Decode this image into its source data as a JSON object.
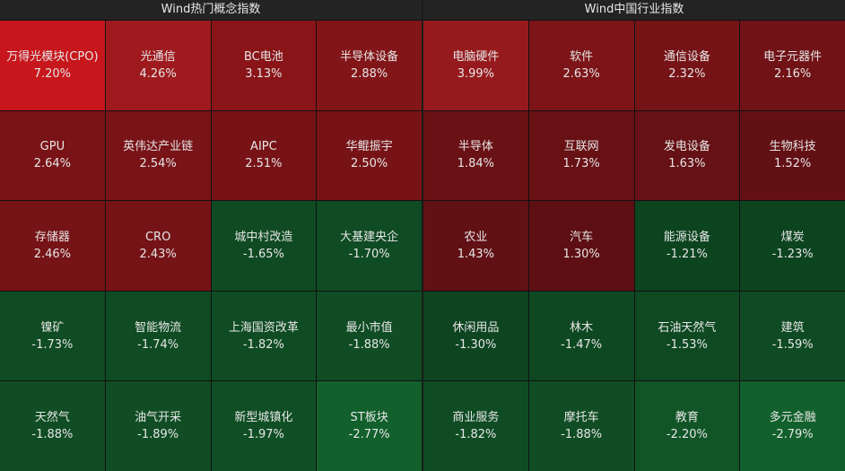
{
  "panels": [
    {
      "title": "Wind热门概念指数",
      "tiles": [
        {
          "name": "万得光模块(CPO)",
          "change": "7.20%",
          "color": "#c8161d"
        },
        {
          "name": "光通信",
          "change": "4.26%",
          "color": "#9e1a1e"
        },
        {
          "name": "BC电池",
          "change": "3.13%",
          "color": "#8a1519"
        },
        {
          "name": "半导体设备",
          "change": "2.88%",
          "color": "#821518"
        },
        {
          "name": "GPU",
          "change": "2.64%",
          "color": "#7a1317"
        },
        {
          "name": "英伟达产业链",
          "change": "2.54%",
          "color": "#781317"
        },
        {
          "name": "AIPC",
          "change": "2.51%",
          "color": "#771317"
        },
        {
          "name": "华鲲振宇",
          "change": "2.50%",
          "color": "#771317"
        },
        {
          "name": "存储器",
          "change": "2.46%",
          "color": "#761317"
        },
        {
          "name": "CRO",
          "change": "2.43%",
          "color": "#751317"
        },
        {
          "name": "城中村改造",
          "change": "-1.65%",
          "color": "#0f4a22"
        },
        {
          "name": "大基建央企",
          "change": "-1.70%",
          "color": "#0f4b23"
        },
        {
          "name": "镍矿",
          "change": "-1.73%",
          "color": "#0f4b23"
        },
        {
          "name": "智能物流",
          "change": "-1.74%",
          "color": "#0f4b23"
        },
        {
          "name": "上海国资改革",
          "change": "-1.82%",
          "color": "#0f4c24"
        },
        {
          "name": "最小市值",
          "change": "-1.88%",
          "color": "#104d24"
        },
        {
          "name": "天然气",
          "change": "-1.88%",
          "color": "#104d24"
        },
        {
          "name": "油气开采",
          "change": "-1.89%",
          "color": "#104d24"
        },
        {
          "name": "新型城镇化",
          "change": "-1.97%",
          "color": "#104e25"
        },
        {
          "name": "ST板块",
          "change": "-2.77%",
          "color": "#12602c"
        }
      ]
    },
    {
      "title": "Wind中国行业指数",
      "tiles": [
        {
          "name": "电脑硬件",
          "change": "3.99%",
          "color": "#961a1d"
        },
        {
          "name": "软件",
          "change": "2.63%",
          "color": "#7c1418"
        },
        {
          "name": "通信设备",
          "change": "2.32%",
          "color": "#751317"
        },
        {
          "name": "电子元器件",
          "change": "2.16%",
          "color": "#701216"
        },
        {
          "name": "半导体",
          "change": "1.84%",
          "color": "#6a1115"
        },
        {
          "name": "互联网",
          "change": "1.73%",
          "color": "#681115"
        },
        {
          "name": "发电设备",
          "change": "1.63%",
          "color": "#661115"
        },
        {
          "name": "生物科技",
          "change": "1.52%",
          "color": "#631014"
        },
        {
          "name": "农业",
          "change": "1.43%",
          "color": "#611014"
        },
        {
          "name": "汽车",
          "change": "1.30%",
          "color": "#5e0f13"
        },
        {
          "name": "能源设备",
          "change": "-1.21%",
          "color": "#0c4420"
        },
        {
          "name": "煤炭",
          "change": "-1.23%",
          "color": "#0c4420"
        },
        {
          "name": "休闲用品",
          "change": "-1.30%",
          "color": "#0d4521"
        },
        {
          "name": "林木",
          "change": "-1.47%",
          "color": "#0e4822"
        },
        {
          "name": "石油天然气",
          "change": "-1.53%",
          "color": "#0e4922"
        },
        {
          "name": "建筑",
          "change": "-1.59%",
          "color": "#0e4a23"
        },
        {
          "name": "商业服务",
          "change": "-1.82%",
          "color": "#0f4c24"
        },
        {
          "name": "摩托车",
          "change": "-1.88%",
          "color": "#104d24"
        },
        {
          "name": "教育",
          "change": "-2.20%",
          "color": "#115527"
        },
        {
          "name": "多元金融",
          "change": "-2.79%",
          "color": "#12602c"
        }
      ]
    }
  ]
}
